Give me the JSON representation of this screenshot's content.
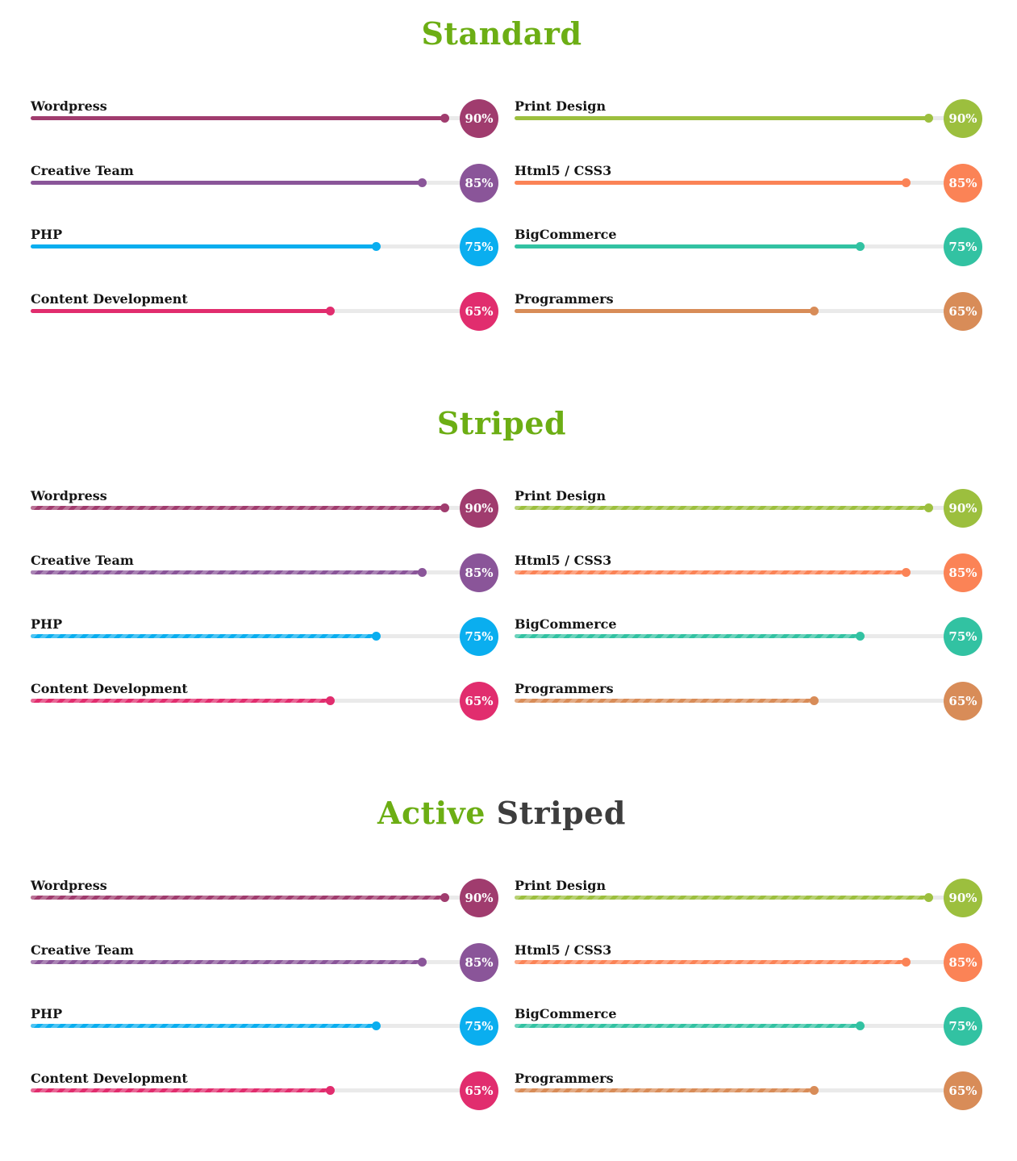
{
  "sections": [
    {
      "title_accent": "Standard",
      "title_dark": "",
      "style": "standard"
    },
    {
      "title_accent": "Striped",
      "title_dark": "",
      "style": "striped"
    },
    {
      "title_accent": "Active",
      "title_dark": "Striped",
      "style": "active-striped"
    }
  ],
  "skills": [
    {
      "label": "Wordpress",
      "value": 90,
      "value_text": "90%",
      "color": "#a03c6e"
    },
    {
      "label": "Print Design",
      "value": 90,
      "value_text": "90%",
      "color": "#9cbf3e"
    },
    {
      "label": "Creative Team",
      "value": 85,
      "value_text": "85%",
      "color": "#8a5599"
    },
    {
      "label": "Html5 / CSS3",
      "value": 85,
      "value_text": "85%",
      "color": "#fb8356"
    },
    {
      "label": "PHP",
      "value": 75,
      "value_text": "75%",
      "color": "#0aaeef"
    },
    {
      "label": "BigCommerce",
      "value": 75,
      "value_text": "75%",
      "color": "#32c2a2"
    },
    {
      "label": "Content Development",
      "value": 65,
      "value_text": "65%",
      "color": "#e12d6e"
    },
    {
      "label": "Programmers",
      "value": 65,
      "value_text": "65%",
      "color": "#d88c58"
    }
  ],
  "colors": {
    "title_accent": "#6cae14",
    "title_dark": "#3d3d3d",
    "track": "#eaeaea"
  }
}
